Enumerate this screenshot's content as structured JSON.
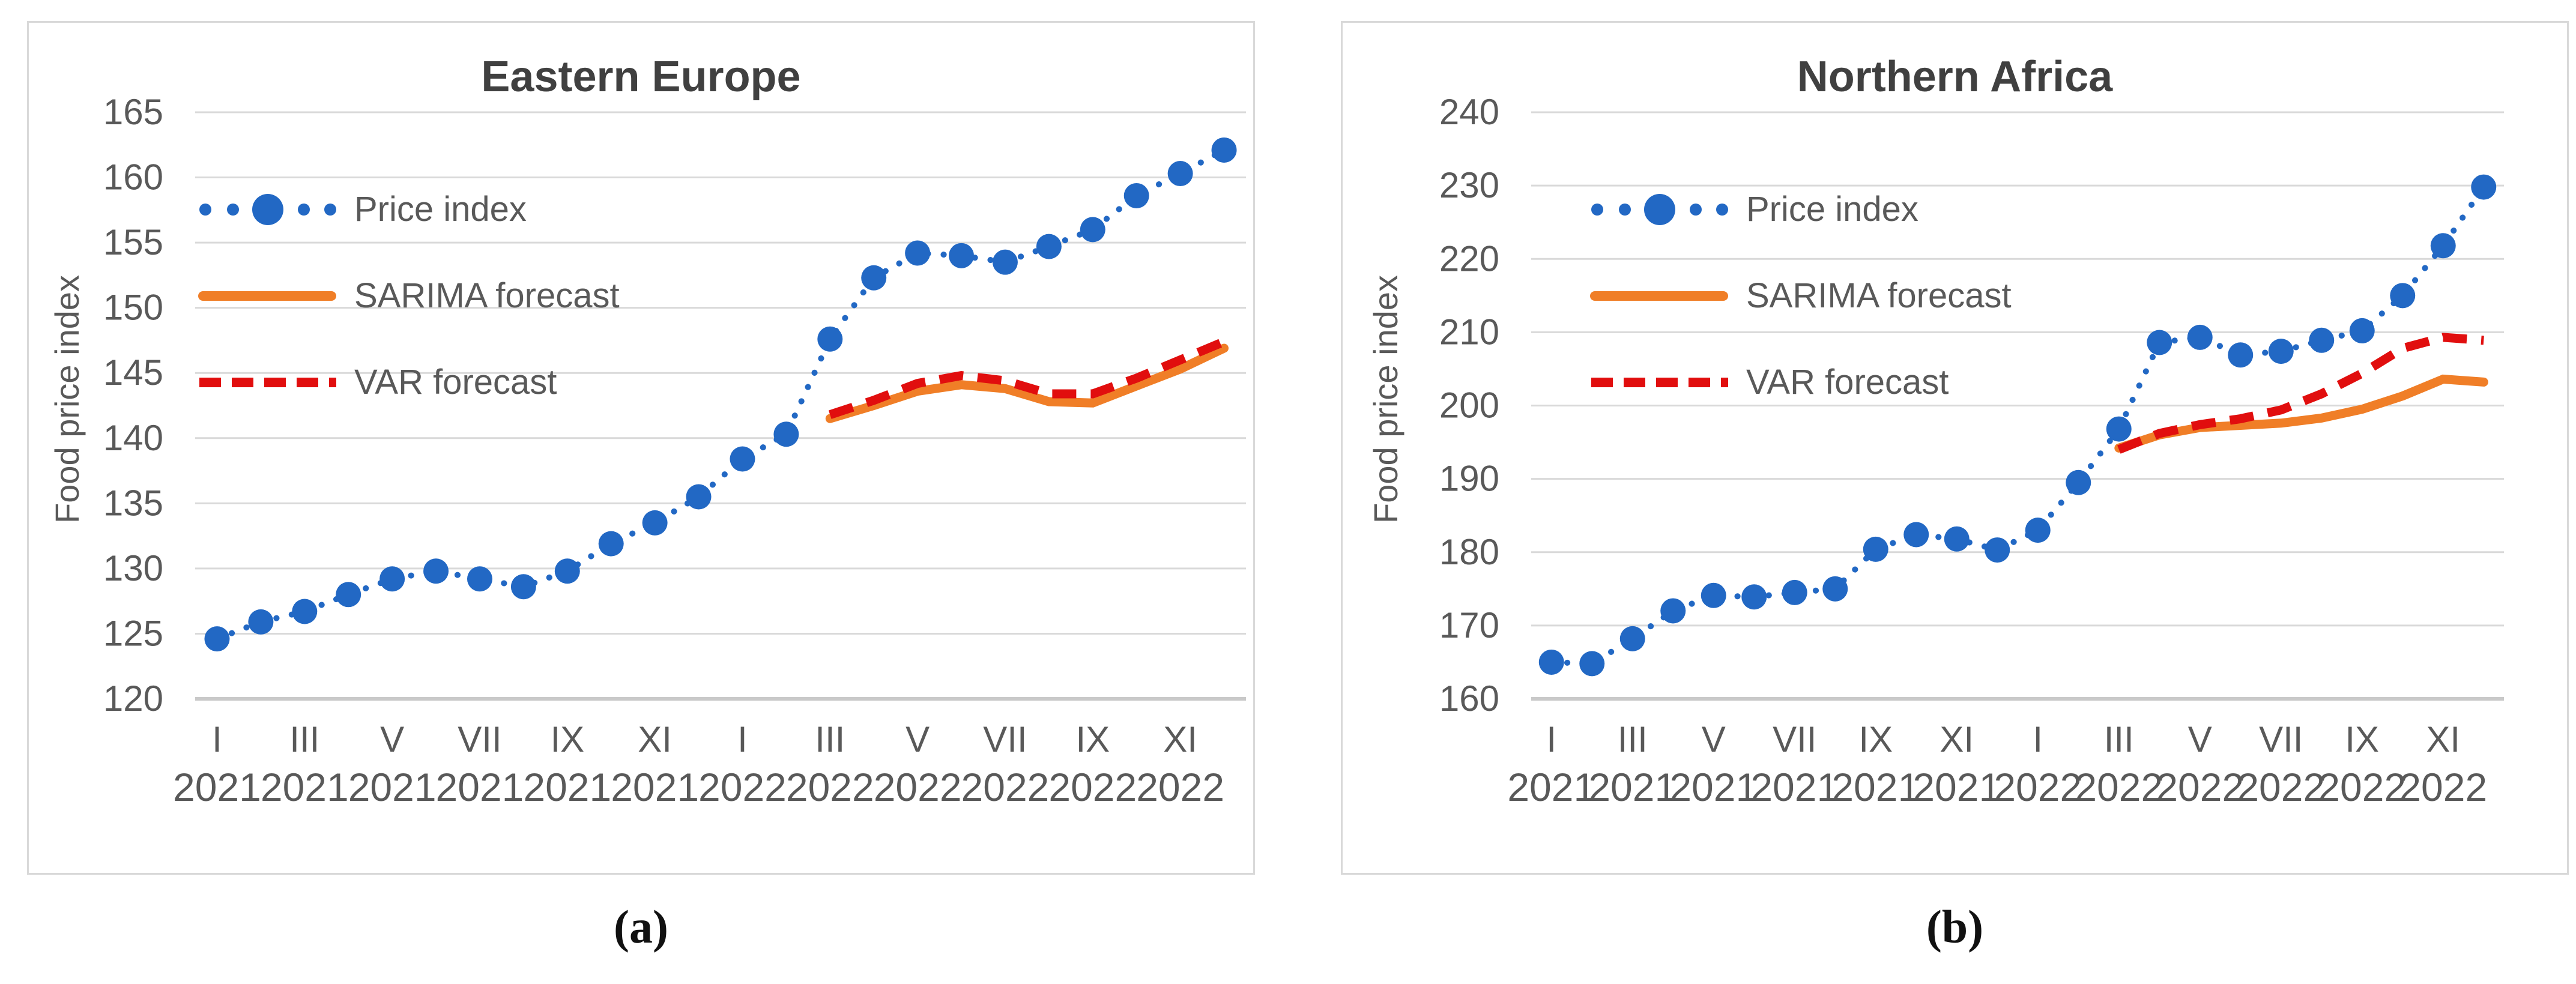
{
  "figure": {
    "description_colors": {
      "price_index_blue": "#2268C4",
      "sarima_orange": "#F07E27",
      "var_red": "#E10E0E",
      "gridline_gray": "#D9D9D9",
      "axis_text_gray": "#595959",
      "title_gray": "#404040"
    }
  },
  "chart_data": [
    {
      "type": "line",
      "title": "Eastern Europe",
      "ylabel": "Food price index",
      "caption": "(a)",
      "ylim": [
        120,
        165
      ],
      "ytick_step": 5,
      "grid": true,
      "legend_position": "inside-top-left",
      "x_tick_labels": [
        {
          "roman": "I",
          "year": "2021"
        },
        {
          "roman": "III",
          "year": "2021"
        },
        {
          "roman": "V",
          "year": "2021"
        },
        {
          "roman": "VII",
          "year": "2021"
        },
        {
          "roman": "IX",
          "year": "2021"
        },
        {
          "roman": "XI",
          "year": "2021"
        },
        {
          "roman": "I",
          "year": "2022"
        },
        {
          "roman": "III",
          "year": "2022"
        },
        {
          "roman": "V",
          "year": "2022"
        },
        {
          "roman": "VII",
          "year": "2022"
        },
        {
          "roman": "IX",
          "year": "2022"
        },
        {
          "roman": "XI",
          "year": "2022"
        }
      ],
      "n_months": 24,
      "series": [
        {
          "name": "Price index",
          "style": "dotted-marker",
          "color": "#2268C4",
          "start_index": 0,
          "values": [
            124.6,
            125.9,
            126.7,
            128.0,
            129.2,
            129.8,
            129.2,
            128.6,
            129.8,
            131.9,
            133.5,
            135.5,
            138.4,
            140.3,
            147.6,
            152.3,
            154.2,
            154.0,
            153.5,
            154.7,
            156.0,
            158.6,
            160.3,
            162.1
          ]
        },
        {
          "name": "SARIMA forecast",
          "style": "solid",
          "color": "#F07E27",
          "start_index": 14,
          "values": [
            141.5,
            142.5,
            143.6,
            144.1,
            143.8,
            142.8,
            142.7,
            144.0,
            145.3,
            146.9
          ]
        },
        {
          "name": "VAR forecast",
          "style": "dashed",
          "color": "#E10E0E",
          "start_index": 14,
          "values": [
            141.8,
            142.9,
            144.2,
            144.8,
            144.4,
            143.4,
            143.4,
            144.6,
            146.0,
            147.4
          ]
        }
      ]
    },
    {
      "type": "line",
      "title": "Northern Africa",
      "ylabel": "Food price index",
      "caption": "(b)",
      "ylim": [
        160,
        240
      ],
      "ytick_step": 10,
      "grid": true,
      "legend_position": "inside-top-left",
      "x_tick_labels": [
        {
          "roman": "I",
          "year": "2021"
        },
        {
          "roman": "III",
          "year": "2021"
        },
        {
          "roman": "V",
          "year": "2021"
        },
        {
          "roman": "VII",
          "year": "2021"
        },
        {
          "roman": "IX",
          "year": "2021"
        },
        {
          "roman": "XI",
          "year": "2021"
        },
        {
          "roman": "I",
          "year": "2022"
        },
        {
          "roman": "III",
          "year": "2022"
        },
        {
          "roman": "V",
          "year": "2022"
        },
        {
          "roman": "VII",
          "year": "2022"
        },
        {
          "roman": "IX",
          "year": "2022"
        },
        {
          "roman": "XI",
          "year": "2022"
        }
      ],
      "n_months": 24,
      "series": [
        {
          "name": "Price index",
          "style": "dotted-marker",
          "color": "#2268C4",
          "start_index": 0,
          "values": [
            165.0,
            164.8,
            168.2,
            172.0,
            174.1,
            173.9,
            174.5,
            175.0,
            180.4,
            182.4,
            181.8,
            180.3,
            183.0,
            189.5,
            196.8,
            208.6,
            209.3,
            206.9,
            207.4,
            208.9,
            210.2,
            215.0,
            221.8,
            229.8
          ]
        },
        {
          "name": "SARIMA forecast",
          "style": "solid",
          "color": "#F07E27",
          "start_index": 14,
          "values": [
            194.2,
            196.0,
            197.0,
            197.3,
            197.6,
            198.3,
            199.5,
            201.3,
            203.6,
            203.2
          ]
        },
        {
          "name": "VAR forecast",
          "style": "dashed",
          "color": "#E10E0E",
          "start_index": 14,
          "values": [
            194.0,
            196.2,
            197.4,
            198.2,
            199.4,
            201.6,
            204.4,
            207.8,
            209.3,
            208.9
          ]
        }
      ]
    }
  ]
}
